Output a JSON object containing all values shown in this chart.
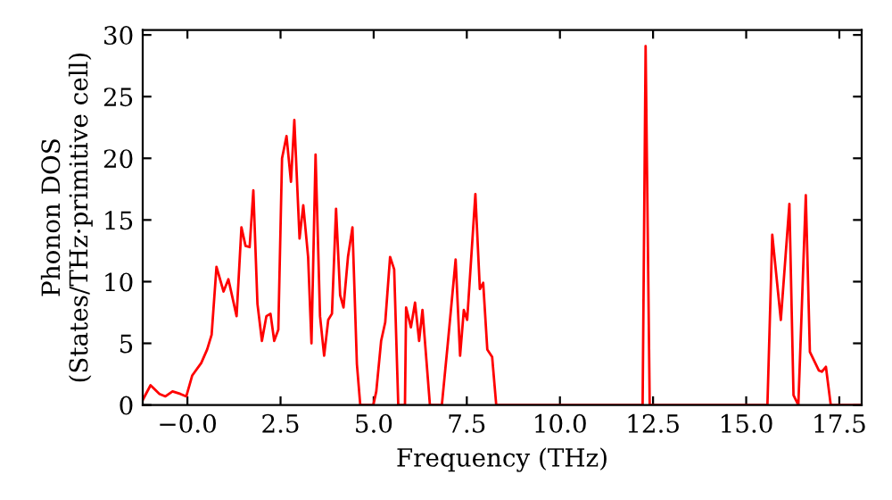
{
  "chart_data": {
    "type": "line",
    "xlabel": "Frequency (THz)",
    "ylabel": "Phonon DOS\n(States/THz·primitive cell)",
    "series": [
      {
        "color": "#ff0000",
        "x": [
          -1.2,
          -0.99,
          -0.75,
          -0.59,
          -0.4,
          -0.19,
          -0.03,
          0.13,
          0.37,
          0.53,
          0.65,
          0.78,
          0.97,
          1.1,
          1.32,
          1.45,
          1.56,
          1.67,
          1.77,
          1.88,
          2.0,
          2.12,
          2.23,
          2.33,
          2.44,
          2.54,
          2.66,
          2.78,
          2.87,
          3.01,
          3.11,
          3.24,
          3.33,
          3.44,
          3.56,
          3.67,
          3.78,
          3.88,
          3.99,
          4.1,
          4.19,
          4.31,
          4.43,
          4.55,
          4.64,
          4.99,
          5.07,
          5.2,
          5.31,
          5.44,
          5.55,
          5.66,
          5.84,
          5.87,
          6.0,
          6.11,
          6.22,
          6.31,
          6.51,
          6.83,
          6.99,
          7.2,
          7.32,
          7.42,
          7.51,
          7.73,
          7.85,
          7.94,
          8.05,
          8.18,
          8.29,
          12.22,
          12.3,
          12.41,
          15.57,
          15.7,
          15.93,
          16.16,
          16.27,
          16.4,
          16.6,
          16.71,
          16.95,
          17.03,
          17.14,
          17.27,
          18.1
        ],
        "values": [
          0.4,
          1.6,
          0.9,
          0.7,
          1.1,
          0.9,
          0.7,
          2.4,
          3.4,
          4.5,
          5.7,
          11.2,
          9.2,
          10.2,
          7.2,
          14.4,
          12.9,
          12.8,
          17.4,
          8.2,
          5.2,
          7.2,
          7.4,
          5.2,
          6.1,
          20.0,
          21.8,
          18.1,
          23.1,
          13.5,
          16.2,
          12.0,
          5.0,
          20.3,
          7.2,
          4.0,
          6.9,
          7.4,
          15.9,
          8.9,
          7.9,
          12.0,
          14.4,
          3.3,
          0,
          0,
          1.1,
          5.2,
          6.7,
          12.0,
          11.0,
          0,
          0,
          7.9,
          6.3,
          8.3,
          5.2,
          7.7,
          0,
          0,
          5.0,
          11.8,
          4.0,
          7.7,
          6.9,
          17.1,
          9.4,
          9.9,
          4.5,
          3.9,
          0,
          0,
          29.1,
          0,
          0,
          13.8,
          6.9,
          16.3,
          0.8,
          0,
          17.0,
          4.3,
          2.8,
          2.7,
          3.1,
          0,
          0
        ]
      }
    ],
    "xlim": [
      -1.2,
      18.1
    ],
    "ylim": [
      0,
      30.4
    ],
    "xticks": [
      {
        "value": 0,
        "label": "−0.0"
      },
      2.5,
      {
        "value": 5,
        "label": "5.0"
      },
      7.5,
      {
        "value": 10,
        "label": "10.0"
      },
      12.5,
      {
        "value": 15,
        "label": "15.0"
      },
      17.5
    ],
    "yticks": [
      0,
      5,
      10,
      15,
      20,
      25,
      30
    ],
    "grid": false,
    "legend": false,
    "marker": "none",
    "line_style": "solid"
  }
}
